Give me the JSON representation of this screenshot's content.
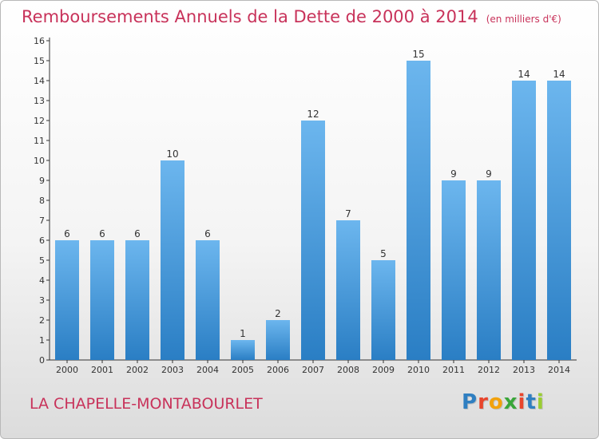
{
  "title": {
    "main": "Remboursements Annuels de la Dette de 2000 à 2014",
    "unit": "(en milliers d'€)"
  },
  "location": "LA CHAPELLE-MONTABOURLET",
  "logo": {
    "text": "Proxiti",
    "letter_colors": [
      "#2f7fc1",
      "#e8452c",
      "#f2a20c",
      "#3aa63a",
      "#e8452c",
      "#2f7fc1",
      "#9acd32"
    ]
  },
  "colors": {
    "bar_top": "#6cb6ee",
    "bar_bottom": "#2a7ec4",
    "accent": "#c8325a",
    "axis": "#333333"
  },
  "chart_data": {
    "type": "bar",
    "categories": [
      "2000",
      "2001",
      "2002",
      "2003",
      "2004",
      "2005",
      "2006",
      "2007",
      "2008",
      "2009",
      "2010",
      "2011",
      "2012",
      "2013",
      "2014"
    ],
    "values": [
      6,
      6,
      6,
      10,
      6,
      1,
      2,
      12,
      7,
      5,
      15,
      9,
      9,
      14,
      14
    ],
    "data_labels": [
      "6",
      "6",
      "6",
      "10",
      "6",
      "1",
      "2",
      "12",
      "7",
      "5",
      "15",
      "9",
      "9",
      "14",
      "14"
    ],
    "title": "Remboursements Annuels de la Dette de 2000 à 2014",
    "xlabel": "",
    "ylabel": "",
    "ylim": [
      0,
      16
    ],
    "yticks": [
      0,
      1,
      2,
      3,
      4,
      5,
      6,
      7,
      8,
      9,
      10,
      11,
      12,
      13,
      14,
      15,
      16
    ],
    "grid": false,
    "legend": "none"
  }
}
